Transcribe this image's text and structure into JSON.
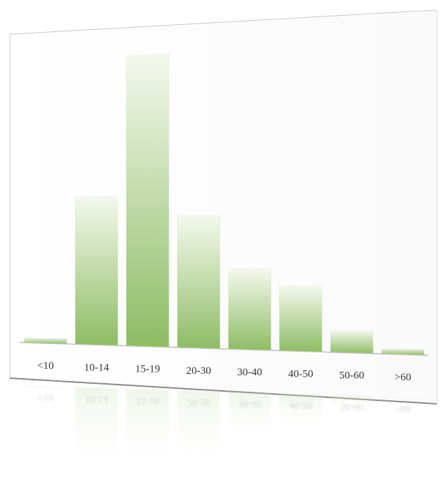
{
  "chart_data": {
    "type": "bar",
    "title": "",
    "xlabel": "",
    "ylabel": "",
    "categories": [
      "<10",
      "10-14",
      "15-19",
      "20-30",
      "30-40",
      "40-50",
      "50-60",
      ">60"
    ],
    "values": [
      1,
      29,
      56,
      25,
      15,
      12,
      4,
      1
    ],
    "ylim": [
      0,
      60
    ],
    "grid": false,
    "legend": "none"
  },
  "colors": {
    "bar_top": "#f4f9ee",
    "bar_bottom": "#8ebc64",
    "axis": "#bdbdbd",
    "card_edge": "#9a9a9a",
    "label": "#333333"
  }
}
